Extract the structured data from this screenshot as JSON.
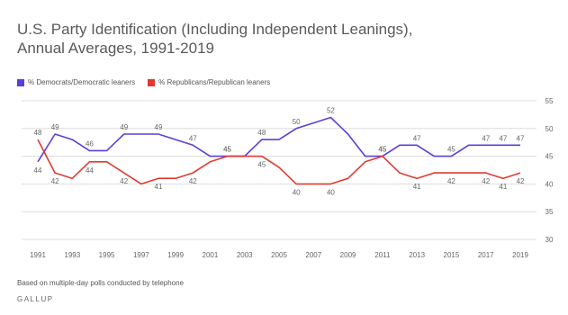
{
  "chart_data": {
    "type": "line",
    "title_lines": [
      "U.S. Party Identification (Including Independent Leanings),",
      "Annual Averages, 1991-2019"
    ],
    "x": [
      1991,
      1992,
      1993,
      1994,
      1995,
      1996,
      1997,
      1998,
      1999,
      2000,
      2001,
      2002,
      2003,
      2004,
      2005,
      2006,
      2007,
      2008,
      2009,
      2010,
      2011,
      2012,
      2013,
      2014,
      2015,
      2016,
      2017,
      2018,
      2019
    ],
    "x_tick_labels": [
      "1991",
      "1993",
      "1995",
      "1997",
      "1999",
      "2001",
      "2003",
      "2005",
      "2007",
      "2009",
      "2011",
      "2013",
      "2015",
      "2017",
      "2019"
    ],
    "ylim": [
      30,
      55
    ],
    "y_ticks": [
      30,
      35,
      40,
      45,
      50,
      55
    ],
    "grid": true,
    "legend_position": "top-left",
    "series": [
      {
        "name": "% Democrats/Democratic leaners",
        "color": "#5b3fd9",
        "values": [
          44,
          49,
          48,
          46,
          46,
          49,
          49,
          49,
          48,
          47,
          45,
          45,
          45,
          48,
          48,
          50,
          51,
          52,
          49,
          45,
          45,
          47,
          47,
          45,
          45,
          47,
          47,
          47,
          47
        ],
        "labeled_points": [
          {
            "year": 1991,
            "label": "44"
          },
          {
            "year": 1992,
            "label": "49"
          },
          {
            "year": 1994,
            "label": "46"
          },
          {
            "year": 1996,
            "label": "49"
          },
          {
            "year": 1998,
            "label": "49"
          },
          {
            "year": 2000,
            "label": "47"
          },
          {
            "year": 2002,
            "label": "45"
          },
          {
            "year": 2004,
            "label": "48"
          },
          {
            "year": 2006,
            "label": "50"
          },
          {
            "year": 2008,
            "label": "52"
          },
          {
            "year": 2011,
            "label": "45"
          },
          {
            "year": 2013,
            "label": "47"
          },
          {
            "year": 2015,
            "label": "45"
          },
          {
            "year": 2017,
            "label": "47"
          },
          {
            "year": 2018,
            "label": "47"
          },
          {
            "year": 2019,
            "label": "47"
          }
        ]
      },
      {
        "name": "% Republicans/Republican leaners",
        "color": "#e03a2f",
        "values": [
          48,
          42,
          41,
          44,
          44,
          42,
          40,
          41,
          41,
          42,
          44,
          45,
          45,
          45,
          43,
          40,
          40,
          40,
          41,
          44,
          45,
          42,
          41,
          42,
          42,
          42,
          42,
          41,
          42
        ],
        "labeled_points": [
          {
            "year": 1991,
            "label": "48"
          },
          {
            "year": 1992,
            "label": "42"
          },
          {
            "year": 1994,
            "label": "44"
          },
          {
            "year": 1996,
            "label": "42"
          },
          {
            "year": 1998,
            "label": "41"
          },
          {
            "year": 2000,
            "label": "42"
          },
          {
            "year": 2002,
            "label": "45"
          },
          {
            "year": 2004,
            "label": "45"
          },
          {
            "year": 2006,
            "label": "40"
          },
          {
            "year": 2008,
            "label": "40"
          },
          {
            "year": 2011,
            "label": "45"
          },
          {
            "year": 2013,
            "label": "41"
          },
          {
            "year": 2015,
            "label": "42"
          },
          {
            "year": 2017,
            "label": "42"
          },
          {
            "year": 2018,
            "label": "41"
          },
          {
            "year": 2019,
            "label": "42"
          }
        ]
      }
    ],
    "footnote": "Based on multiple-day polls conducted by telephone",
    "source": "GALLUP"
  }
}
